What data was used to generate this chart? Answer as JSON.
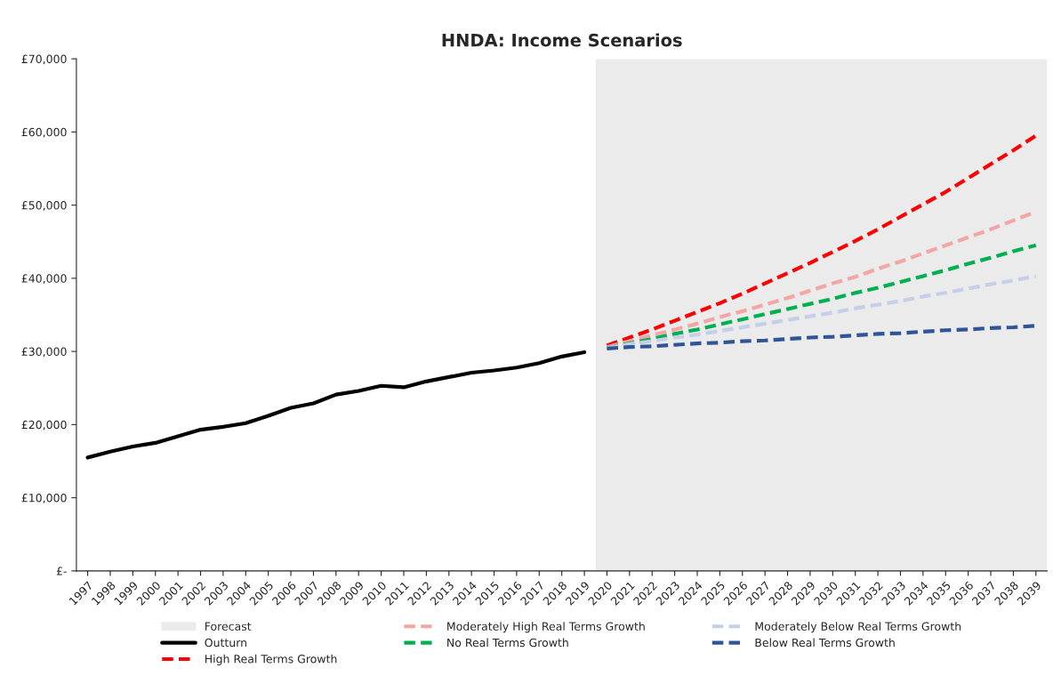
{
  "chart_data": {
    "type": "line",
    "title": "HNDA: Income Scenarios",
    "categories": [
      "1997",
      "1998",
      "1999",
      "2000",
      "2001",
      "2002",
      "2003",
      "2004",
      "2005",
      "2006",
      "2007",
      "2008",
      "2009",
      "2010",
      "2011",
      "2012",
      "2013",
      "2014",
      "2015",
      "2016",
      "2017",
      "2018",
      "2019",
      "2020",
      "2021",
      "2022",
      "2023",
      "2024",
      "2025",
      "2026",
      "2027",
      "2028",
      "2029",
      "2030",
      "2031",
      "2032",
      "2033",
      "2034",
      "2035",
      "2036",
      "2037",
      "2038",
      "2039"
    ],
    "series": [
      {
        "name": "Outturn",
        "color": "#000000",
        "line_style": "solid",
        "values": [
          15500,
          16300,
          17000,
          17500,
          18400,
          19300,
          19700,
          20200,
          21200,
          22300,
          22900,
          24100,
          24600,
          25300,
          25100,
          25900,
          26500,
          27100,
          27400,
          27800,
          28400,
          29300,
          29900,
          null,
          null,
          null,
          null,
          null,
          null,
          null,
          null,
          null,
          null,
          null,
          null,
          null,
          null,
          null,
          null,
          null,
          null,
          null,
          null
        ]
      },
      {
        "name": "High Real Terms Growth",
        "color": "#ff0000",
        "line_style": "dashed",
        "values": [
          null,
          null,
          null,
          null,
          null,
          null,
          null,
          null,
          null,
          null,
          null,
          null,
          null,
          null,
          null,
          null,
          null,
          null,
          null,
          null,
          null,
          null,
          null,
          30800,
          31900,
          33000,
          34200,
          35400,
          36600,
          37900,
          39300,
          40700,
          42100,
          43600,
          45100,
          46700,
          48400,
          50100,
          51800,
          53700,
          55600,
          57500,
          59500
        ]
      },
      {
        "name": "Moderately High Real Terms Growth",
        "color": "#f4a6a6",
        "line_style": "dashed",
        "values": [
          null,
          null,
          null,
          null,
          null,
          null,
          null,
          null,
          null,
          null,
          null,
          null,
          null,
          null,
          null,
          null,
          null,
          null,
          null,
          null,
          null,
          null,
          null,
          30600,
          31400,
          32200,
          33000,
          33800,
          34700,
          35500,
          36400,
          37300,
          38300,
          39300,
          40200,
          41300,
          42300,
          43400,
          44500,
          45600,
          46700,
          47900,
          49100
        ]
      },
      {
        "name": "No Real Terms Growth",
        "color": "#00b050",
        "line_style": "dashed",
        "values": [
          null,
          null,
          null,
          null,
          null,
          null,
          null,
          null,
          null,
          null,
          null,
          null,
          null,
          null,
          null,
          null,
          null,
          null,
          null,
          null,
          null,
          null,
          null,
          30500,
          31100,
          31700,
          32400,
          33000,
          33700,
          34400,
          35100,
          35800,
          36500,
          37200,
          38000,
          38700,
          39500,
          40300,
          41100,
          42000,
          42800,
          43700,
          44500
        ]
      },
      {
        "name": "Moderately Below Real Terms Growth",
        "color": "#c5cfe8",
        "line_style": "dashed",
        "values": [
          null,
          null,
          null,
          null,
          null,
          null,
          null,
          null,
          null,
          null,
          null,
          null,
          null,
          null,
          null,
          null,
          null,
          null,
          null,
          null,
          null,
          null,
          null,
          30500,
          31000,
          31400,
          31900,
          32300,
          32800,
          33300,
          33800,
          34300,
          34800,
          35300,
          35900,
          36400,
          36900,
          37500,
          38000,
          38600,
          39200,
          39700,
          40300
        ]
      },
      {
        "name": "Below Real Terms Growth",
        "color": "#2f5597",
        "line_style": "dashed",
        "values": [
          null,
          null,
          null,
          null,
          null,
          null,
          null,
          null,
          null,
          null,
          null,
          null,
          null,
          null,
          null,
          null,
          null,
          null,
          null,
          null,
          null,
          null,
          null,
          30400,
          30600,
          30700,
          30900,
          31100,
          31200,
          31400,
          31500,
          31700,
          31900,
          32000,
          32200,
          32400,
          32500,
          32700,
          32900,
          33000,
          33200,
          33300,
          33500
        ]
      }
    ],
    "bands": [
      {
        "axis": "x",
        "from": "2020",
        "to": "2039",
        "label": "Forecast",
        "color": "#ebebeb"
      }
    ],
    "ylim": [
      0,
      70000
    ],
    "yticks": [
      {
        "value": 0,
        "label": "£-"
      },
      {
        "value": 10000,
        "label": "£10,000"
      },
      {
        "value": 20000,
        "label": "£20,000"
      },
      {
        "value": 30000,
        "label": "£30,000"
      },
      {
        "value": 40000,
        "label": "£40,000"
      },
      {
        "value": 50000,
        "label": "£50,000"
      },
      {
        "value": 60000,
        "label": "£60,000"
      },
      {
        "value": 70000,
        "label": "£70,000"
      }
    ],
    "grid": false,
    "legend": "bottom",
    "marker": "none"
  }
}
